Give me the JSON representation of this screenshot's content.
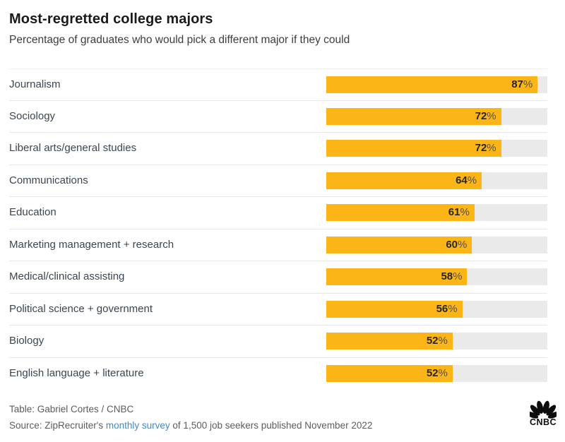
{
  "header": {
    "title": "Most-regretted college majors",
    "subtitle": "Percentage of graduates who would pick a different major if they could"
  },
  "chart_data": {
    "type": "bar",
    "orientation": "horizontal",
    "title": "Most-regretted college majors",
    "subtitle": "Percentage of graduates who would pick a different major if they could",
    "categories": [
      "Journalism",
      "Sociology",
      "Liberal arts/general studies",
      "Communications",
      "Education",
      "Marketing management + research",
      "Medical/clinical assisting",
      "Political science + government",
      "Biology",
      "English language + literature"
    ],
    "values": [
      87,
      72,
      72,
      64,
      61,
      60,
      58,
      56,
      52,
      52
    ],
    "unit": "%",
    "value_labels": [
      "87%",
      "72%",
      "72%",
      "64%",
      "61%",
      "60%",
      "58%",
      "56%",
      "52%",
      "52%"
    ],
    "xlim": [
      0,
      91
    ],
    "grid": false,
    "legend": "none",
    "bar_color": "#fcb516",
    "track_color": "#eaeaea"
  },
  "footer": {
    "credit": "Table: Gabriel Cortes / CNBC",
    "source_prefix": "Source: ZipRecruiter's ",
    "source_link": "monthly survey",
    "source_suffix": " of 1,500 job seekers published November 2022",
    "logo_text": "CNBC"
  },
  "colors": {
    "accent_gold": "#fcb516",
    "track_gray": "#eaeaea",
    "title_text": "#1a1a1a",
    "label_text": "#3c4650",
    "footer_text": "#5c5c5c",
    "link_blue": "#4189c9",
    "logo_black": "#0d0d0d"
  }
}
